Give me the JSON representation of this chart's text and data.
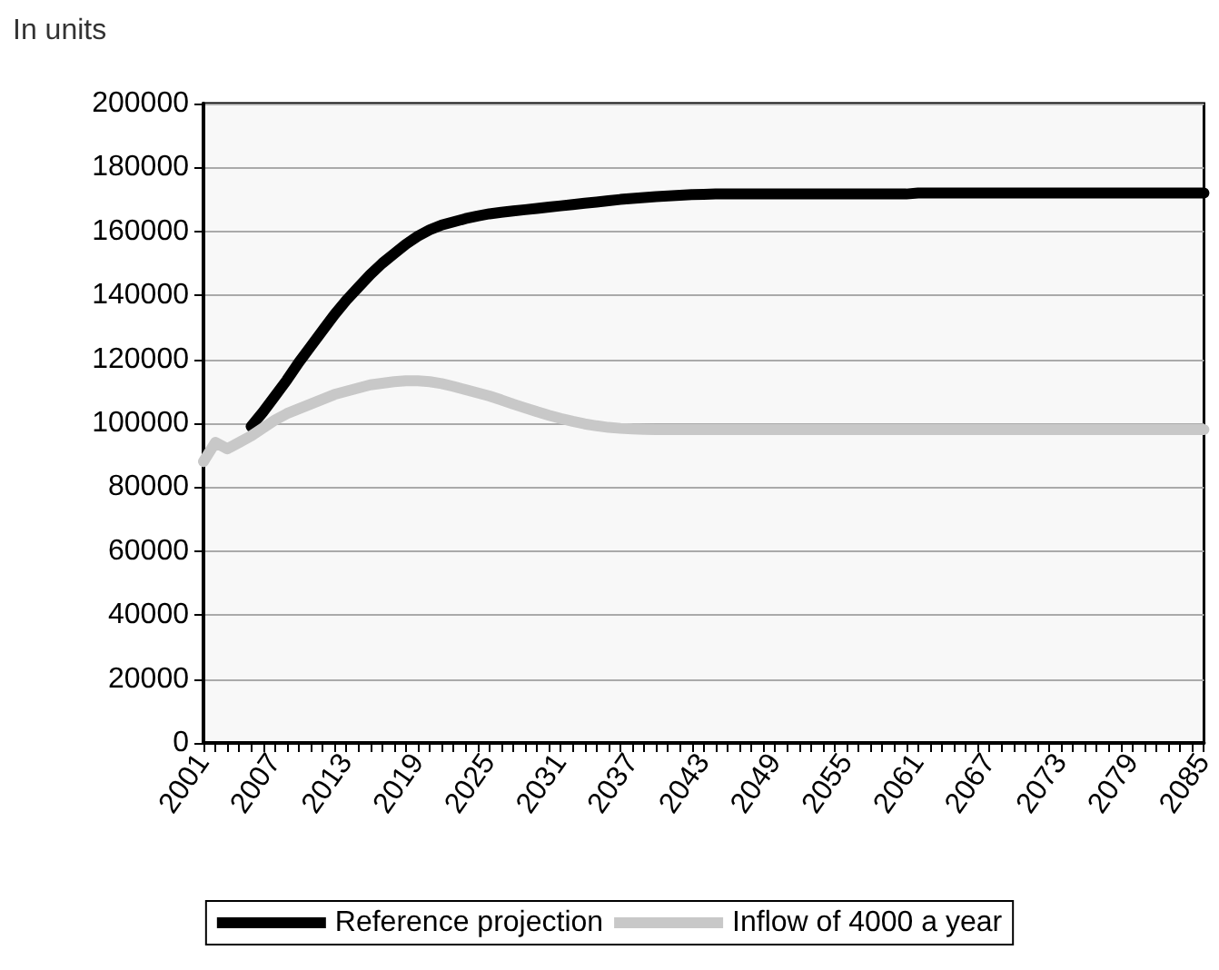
{
  "chart_data": {
    "type": "line",
    "title": "In units",
    "categories": [
      "2001",
      null,
      null,
      null,
      null,
      null,
      "2007",
      null,
      null,
      null,
      null,
      null,
      "2013",
      null,
      null,
      null,
      null,
      null,
      "2019",
      null,
      null,
      null,
      null,
      null,
      "2025",
      null,
      null,
      null,
      null,
      null,
      "2031",
      null,
      null,
      null,
      null,
      null,
      "2037",
      null,
      null,
      null,
      null,
      null,
      "2043",
      null,
      null,
      null,
      null,
      null,
      "2049",
      null,
      null,
      null,
      null,
      null,
      "2055",
      null,
      null,
      null,
      null,
      null,
      "2061",
      null,
      null,
      null,
      null,
      null,
      "2067",
      null,
      null,
      null,
      null,
      null,
      "2073",
      null,
      null,
      null,
      null,
      null,
      "2079",
      null,
      null,
      null,
      null,
      null,
      "2085"
    ],
    "series": [
      {
        "name": "Reference projection",
        "color": "#000000",
        "values": [
          null,
          null,
          null,
          null,
          99000,
          103500,
          108500,
          113500,
          119000,
          124000,
          129000,
          134000,
          138500,
          142500,
          146500,
          150000,
          153000,
          156000,
          158500,
          160500,
          162000,
          163000,
          164000,
          164800,
          165500,
          166000,
          166400,
          166800,
          167200,
          167600,
          168000,
          168400,
          168800,
          169200,
          169600,
          170000,
          170300,
          170600,
          170900,
          171100,
          171300,
          171500,
          171600,
          171700,
          171700,
          171700,
          171700,
          171700,
          171700,
          171700,
          171700,
          171700,
          171700,
          171700,
          171700,
          171700,
          171700,
          171700,
          171700,
          171700,
          172000,
          172000,
          172000,
          172000,
          172000,
          172000,
          172000,
          172000,
          172000,
          172000,
          172000,
          172000,
          172000,
          172000,
          172000,
          172000,
          172000,
          172000,
          172000,
          172000,
          172000,
          172000,
          172000,
          172000,
          172000
        ]
      },
      {
        "name": "Inflow of 4000 a year",
        "color": "#c8c8c8",
        "values": [
          88000,
          94000,
          92000,
          94000,
          96000,
          98500,
          101000,
          103000,
          104500,
          106000,
          107500,
          109000,
          110000,
          111000,
          112000,
          112500,
          113000,
          113300,
          113300,
          113000,
          112400,
          111500,
          110500,
          109500,
          108500,
          107300,
          106000,
          104800,
          103600,
          102500,
          101500,
          100600,
          99800,
          99200,
          98700,
          98400,
          98200,
          98100,
          98000,
          98000,
          98000,
          98000,
          98000,
          98000,
          98000,
          98000,
          98000,
          98000,
          98000,
          98000,
          98000,
          98000,
          98000,
          98000,
          98000,
          98000,
          98000,
          98000,
          98000,
          98000,
          98000,
          98000,
          98000,
          98000,
          98000,
          98000,
          98000,
          98000,
          98000,
          98000,
          98000,
          98000,
          98000,
          98000,
          98000,
          98000,
          98000,
          98000,
          98000,
          98000,
          98000,
          98000,
          98000,
          98000,
          98000
        ]
      }
    ],
    "ylim": [
      0,
      200000
    ],
    "yticks": [
      0,
      20000,
      40000,
      60000,
      80000,
      100000,
      120000,
      140000,
      160000,
      180000,
      200000
    ],
    "grid": "y",
    "legend": "bottom",
    "marker": "none",
    "line_style": "solid"
  }
}
